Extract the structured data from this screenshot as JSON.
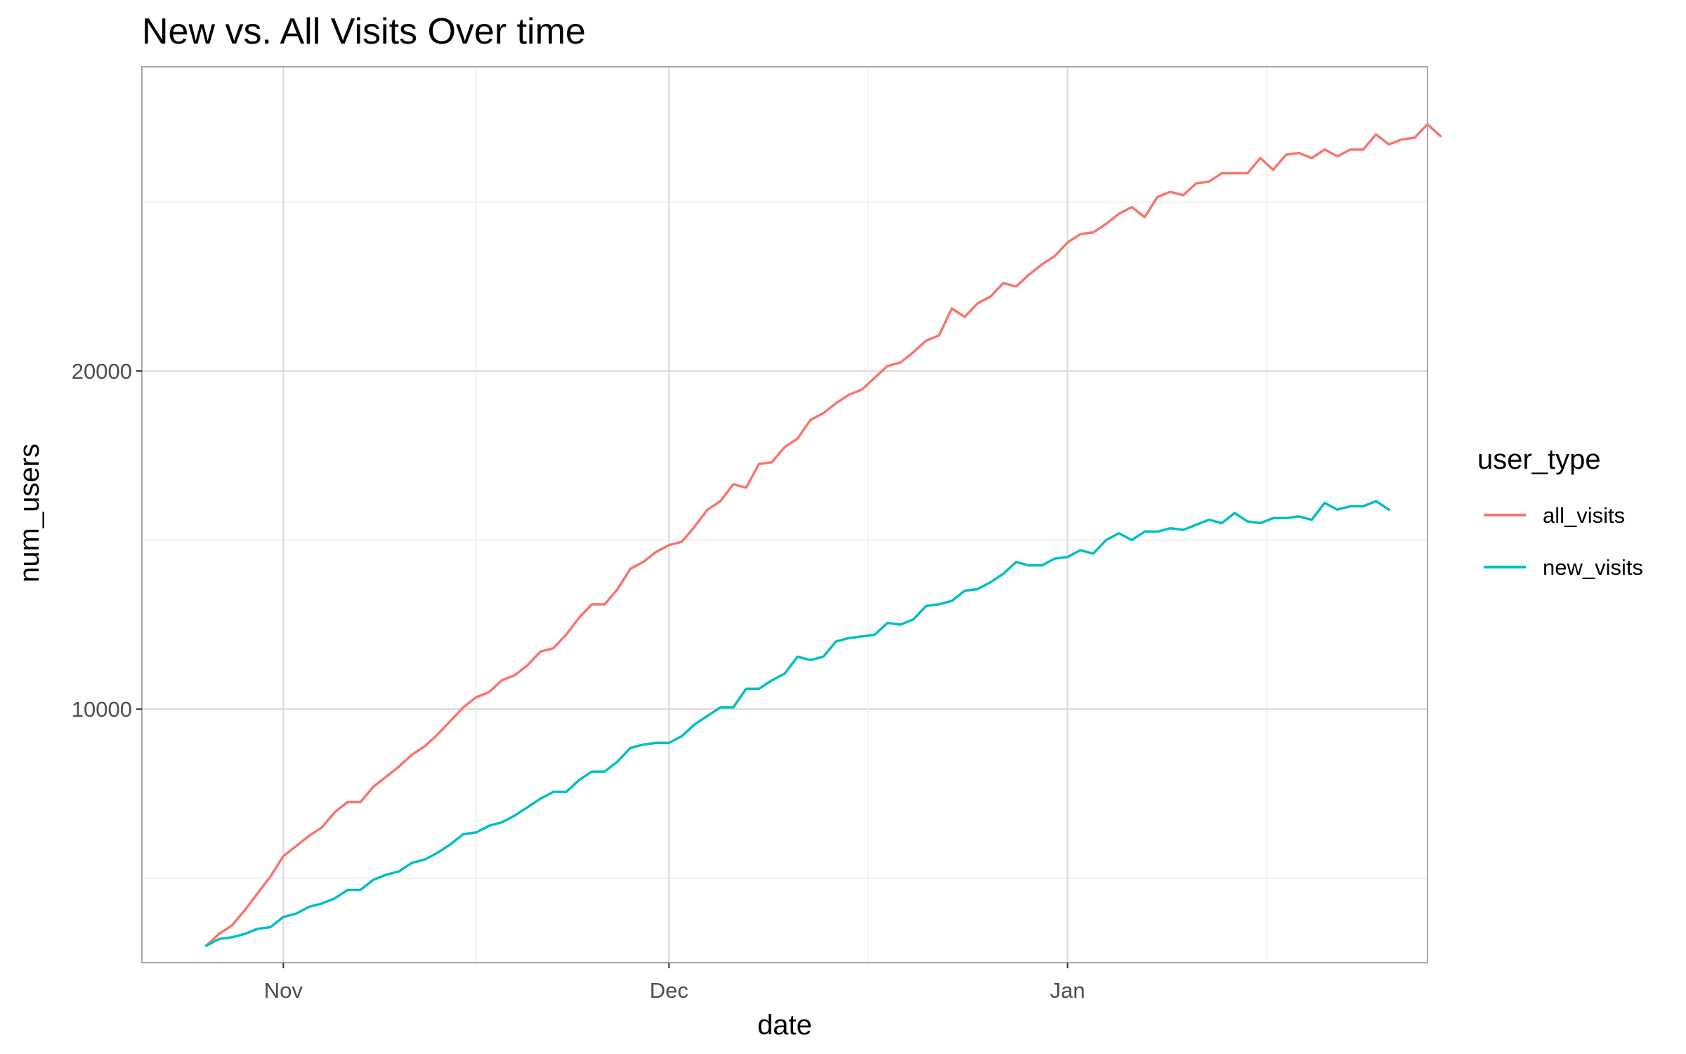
{
  "chart_data": {
    "type": "line",
    "title": "New vs. All Visits Over time",
    "xlabel": "date",
    "ylabel": "num_users",
    "x_ticks": [
      "Nov",
      "Dec",
      "Jan"
    ],
    "x_tick_dates": [
      "2020-11-01",
      "2020-12-01",
      "2021-01-01"
    ],
    "y_ticks": [
      10000,
      20000
    ],
    "xlim": [
      "2020-10-21",
      "2021-01-29"
    ],
    "ylim": [
      2500,
      29000
    ],
    "grid": true,
    "legend": {
      "title": "user_type",
      "position": "right"
    },
    "start_date": "2020-10-26",
    "series": [
      {
        "name": "all_visits",
        "color": "#F8766D",
        "values": [
          3000,
          3350,
          3600,
          4050,
          4550,
          5050,
          5650,
          5950,
          6250,
          6500,
          6950,
          7250,
          7250,
          7700,
          8000,
          8300,
          8650,
          8900,
          9250,
          9650,
          10050,
          10350,
          10500,
          10850,
          11000,
          11300,
          11700,
          11800,
          12200,
          12700,
          13100,
          13100,
          13550,
          14150,
          14350,
          14650,
          14850,
          14950,
          15400,
          15900,
          16150,
          16650,
          16550,
          17250,
          17300,
          17750,
          18000,
          18550,
          18750,
          19050,
          19300,
          19450,
          19800,
          20150,
          20250,
          20550,
          20900,
          21050,
          21850,
          21600,
          22000,
          22200,
          22600,
          22500,
          22850,
          23150,
          23400,
          23800,
          24050,
          24100,
          24350,
          24650,
          24850,
          24550,
          25150,
          25300,
          25200,
          25550,
          25600,
          25850,
          25850,
          25850,
          26300,
          25950,
          26400,
          26450,
          26300,
          26550,
          26350,
          26550,
          26550,
          27000,
          26700,
          26850,
          26900,
          27300,
          26950
        ]
      },
      {
        "name": "new_visits",
        "color": "#00BFC4",
        "values": [
          3000,
          3200,
          3250,
          3350,
          3500,
          3550,
          3850,
          3950,
          4150,
          4250,
          4400,
          4650,
          4650,
          4950,
          5100,
          5200,
          5450,
          5550,
          5750,
          6000,
          6300,
          6350,
          6550,
          6650,
          6850,
          7100,
          7350,
          7550,
          7550,
          7900,
          8150,
          8150,
          8450,
          8850,
          8950,
          9000,
          9000,
          9200,
          9550,
          9800,
          10050,
          10050,
          10600,
          10600,
          10850,
          11050,
          11550,
          11450,
          11550,
          12000,
          12100,
          12150,
          12200,
          12550,
          12500,
          12650,
          13050,
          13100,
          13200,
          13500,
          13550,
          13750,
          14000,
          14350,
          14250,
          14250,
          14450,
          14500,
          14700,
          14600,
          15000,
          15200,
          15000,
          15250,
          15250,
          15350,
          15300,
          15450,
          15600,
          15500,
          15800,
          15550,
          15500,
          15650,
          15650,
          15700,
          15600,
          16100,
          15900,
          16000,
          16000,
          16150,
          15900
        ]
      }
    ]
  }
}
